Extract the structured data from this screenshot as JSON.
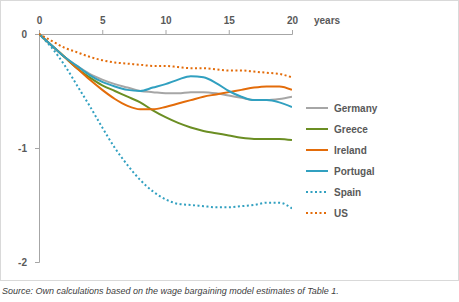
{
  "chart_data": {
    "type": "line",
    "x_label": "years",
    "source": "Source: Own calculations based on the wage bargaining model estimates of Table 1.",
    "x": [
      0,
      1,
      2,
      3,
      4,
      5,
      6,
      7,
      8,
      9,
      10,
      11,
      12,
      13,
      14,
      15,
      16,
      17,
      18,
      19,
      20
    ],
    "xlim": [
      0,
      20
    ],
    "xticks": [
      0,
      5,
      10,
      15,
      20
    ],
    "ylim": [
      -2,
      0
    ],
    "yticks": [
      -2,
      -1,
      0
    ],
    "grid": false,
    "legend": "right",
    "series": [
      {
        "name": "Germany",
        "color": "#a6a6a6",
        "line_style": "solid",
        "values": [
          0,
          -0.1,
          -0.2,
          -0.28,
          -0.35,
          -0.4,
          -0.44,
          -0.47,
          -0.5,
          -0.51,
          -0.52,
          -0.52,
          -0.51,
          -0.51,
          -0.52,
          -0.54,
          -0.56,
          -0.58,
          -0.58,
          -0.57,
          -0.55
        ]
      },
      {
        "name": "Greece",
        "color": "#6b8e23",
        "line_style": "solid",
        "values": [
          0,
          -0.1,
          -0.2,
          -0.3,
          -0.38,
          -0.45,
          -0.5,
          -0.55,
          -0.6,
          -0.67,
          -0.73,
          -0.78,
          -0.82,
          -0.85,
          -0.87,
          -0.89,
          -0.91,
          -0.92,
          -0.92,
          -0.92,
          -0.93
        ]
      },
      {
        "name": "Ireland",
        "color": "#e36c0a",
        "line_style": "solid",
        "values": [
          0,
          -0.1,
          -0.2,
          -0.3,
          -0.4,
          -0.49,
          -0.57,
          -0.63,
          -0.66,
          -0.66,
          -0.64,
          -0.61,
          -0.58,
          -0.55,
          -0.53,
          -0.51,
          -0.49,
          -0.47,
          -0.46,
          -0.46,
          -0.49
        ]
      },
      {
        "name": "Portugal",
        "color": "#31a0c0",
        "line_style": "solid",
        "values": [
          0,
          -0.1,
          -0.2,
          -0.28,
          -0.36,
          -0.42,
          -0.46,
          -0.49,
          -0.5,
          -0.47,
          -0.44,
          -0.4,
          -0.37,
          -0.38,
          -0.43,
          -0.5,
          -0.55,
          -0.58,
          -0.58,
          -0.6,
          -0.64
        ]
      },
      {
        "name": "Spain",
        "color": "#31a0c0",
        "line_style": "dotted",
        "values": [
          0,
          -0.12,
          -0.27,
          -0.45,
          -0.63,
          -0.82,
          -1.0,
          -1.15,
          -1.28,
          -1.38,
          -1.45,
          -1.49,
          -1.5,
          -1.51,
          -1.52,
          -1.52,
          -1.51,
          -1.5,
          -1.48,
          -1.48,
          -1.53
        ]
      },
      {
        "name": "US",
        "color": "#e36c0a",
        "line_style": "dotted",
        "values": [
          0,
          -0.06,
          -0.12,
          -0.16,
          -0.2,
          -0.23,
          -0.25,
          -0.26,
          -0.27,
          -0.28,
          -0.28,
          -0.29,
          -0.3,
          -0.3,
          -0.31,
          -0.32,
          -0.32,
          -0.33,
          -0.34,
          -0.35,
          -0.38
        ]
      }
    ]
  }
}
